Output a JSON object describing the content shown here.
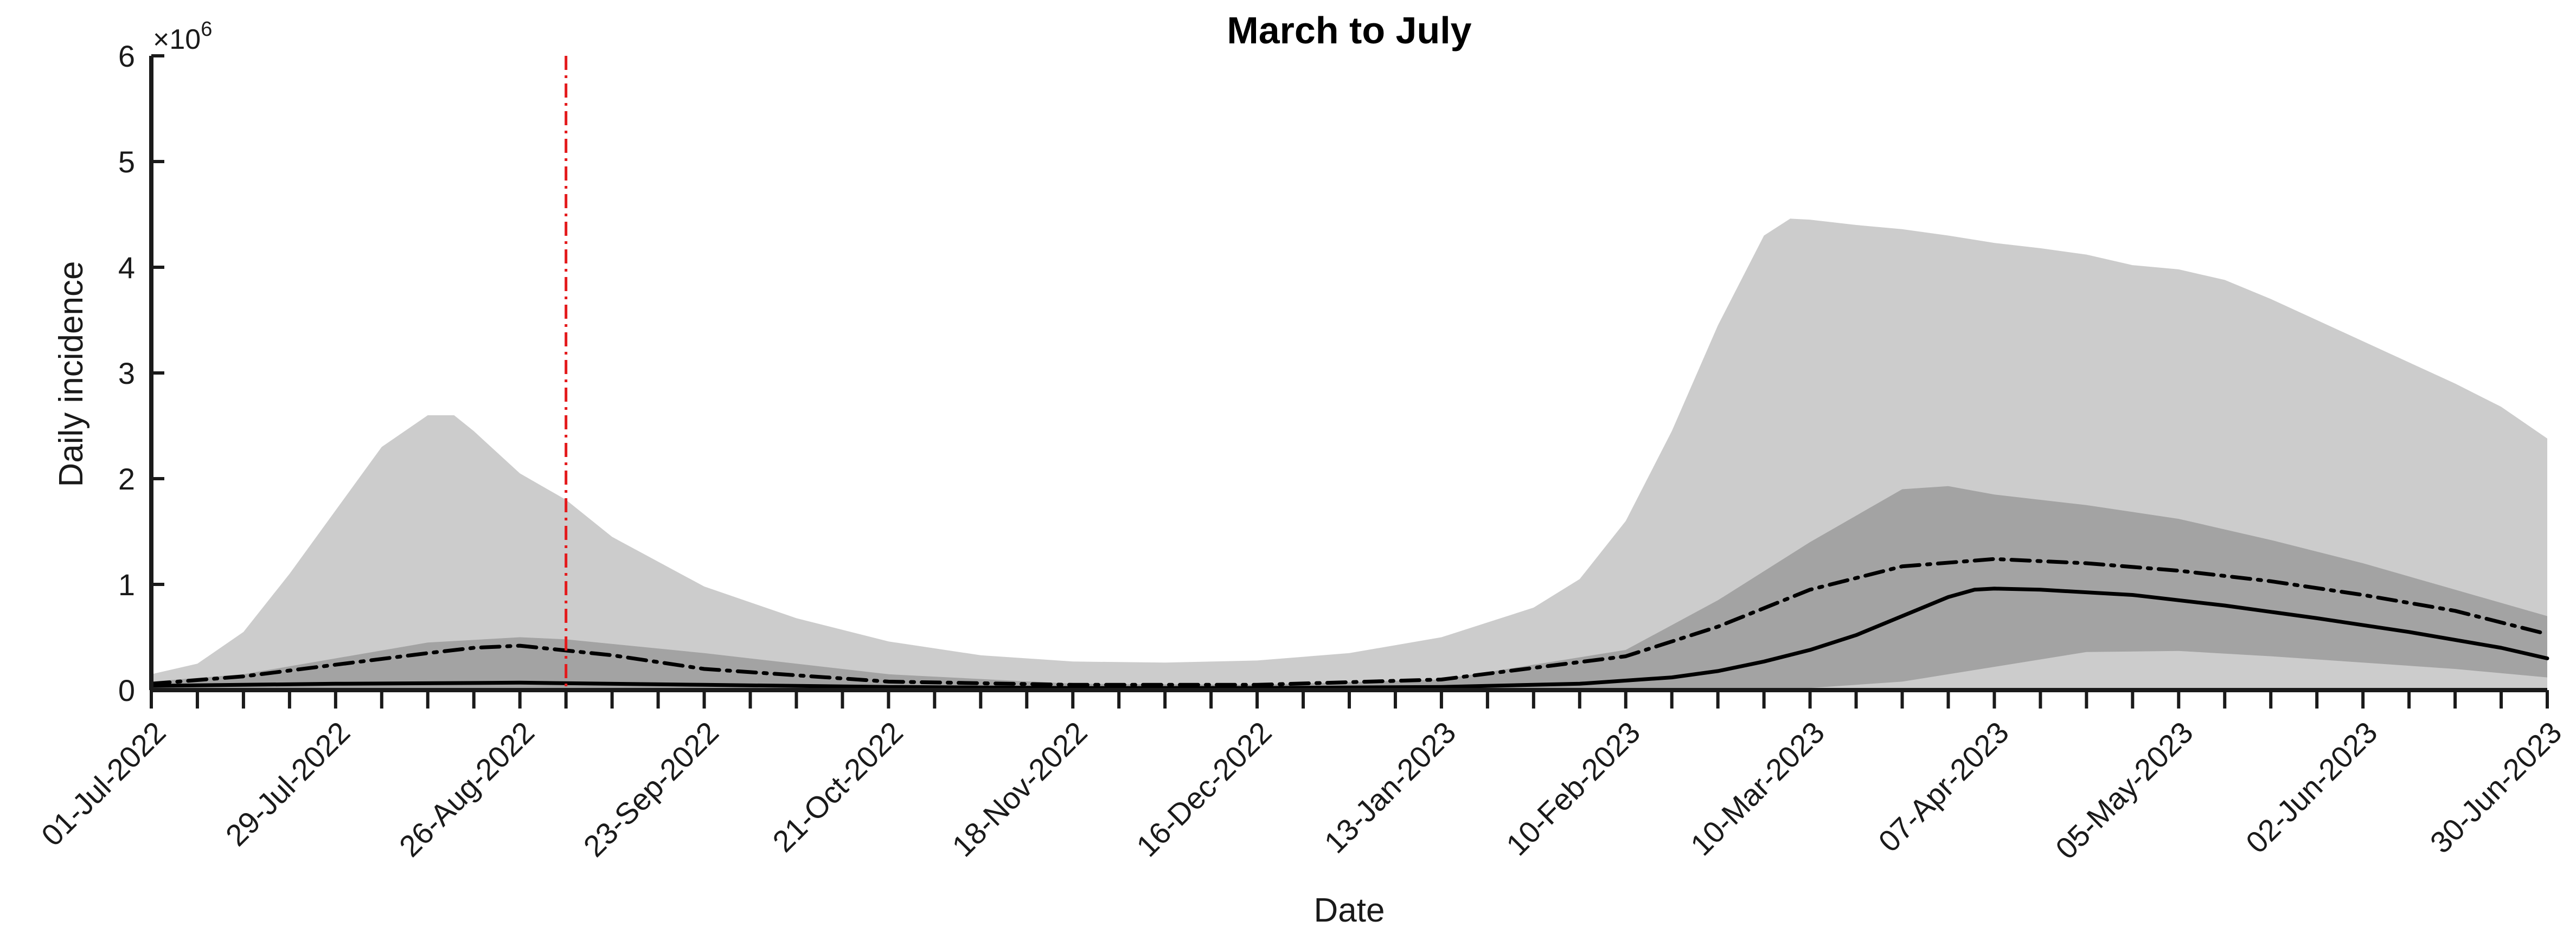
{
  "chart_data": {
    "type": "area",
    "title": "March to July",
    "xlabel": "Date",
    "ylabel": "Daily incidence",
    "y_multiplier_label": "×10",
    "y_multiplier_exponent": "6",
    "x_range": [
      "2022-07-01",
      "2023-06-30"
    ],
    "ylim": [
      0,
      6
    ],
    "y_ticks": [
      0,
      1,
      2,
      3,
      4,
      5,
      6
    ],
    "x_tick_labels": [
      "01-Jul-2022",
      "29-Jul-2022",
      "26-Aug-2022",
      "23-Sep-2022",
      "21-Oct-2022",
      "18-Nov-2022",
      "16-Dec-2022",
      "13-Jan-2023",
      "10-Feb-2023",
      "10-Mar-2023",
      "07-Apr-2023",
      "05-May-2023",
      "02-Jun-2023",
      "30-Jun-2023"
    ],
    "x_tick_dates": [
      "2022-07-01",
      "2022-07-29",
      "2022-08-26",
      "2022-09-23",
      "2022-10-21",
      "2022-11-18",
      "2022-12-16",
      "2023-01-13",
      "2023-02-10",
      "2023-03-10",
      "2023-04-07",
      "2023-05-05",
      "2023-06-02",
      "2023-06-30"
    ],
    "vertical_marker": {
      "date": "2022-09-02",
      "color": "#e41a1c",
      "style": "dash-dot"
    },
    "colors": {
      "outer_band": "#cccccc",
      "inner_band": "#a3a3a3",
      "lines": "#000000",
      "axis": "#1a1a1a"
    },
    "series": [
      {
        "style": "outer-band",
        "x": [
          "2022-07-01",
          "2022-07-08",
          "2022-07-15",
          "2022-07-22",
          "2022-07-29",
          "2022-08-05",
          "2022-08-12",
          "2022-08-16",
          "2022-08-19",
          "2022-08-26",
          "2022-09-02",
          "2022-09-09",
          "2022-09-23",
          "2022-10-07",
          "2022-10-21",
          "2022-11-04",
          "2022-11-18",
          "2022-12-02",
          "2022-12-16",
          "2022-12-30",
          "2023-01-13",
          "2023-01-27",
          "2023-02-03",
          "2023-02-10",
          "2023-02-17",
          "2023-02-24",
          "2023-03-03",
          "2023-03-07",
          "2023-03-10",
          "2023-03-17",
          "2023-03-24",
          "2023-03-31",
          "2023-04-07",
          "2023-04-14",
          "2023-04-21",
          "2023-04-28",
          "2023-05-05",
          "2023-05-12",
          "2023-05-19",
          "2023-05-26",
          "2023-06-02",
          "2023-06-09",
          "2023-06-16",
          "2023-06-23",
          "2023-06-30"
        ],
        "lower": [
          0,
          0,
          0,
          0,
          0,
          0,
          0,
          0,
          0,
          0,
          0,
          0,
          0,
          0,
          0,
          0,
          0,
          0,
          0,
          0,
          0,
          0,
          0,
          0,
          0,
          0,
          0,
          0,
          0,
          0,
          0,
          0,
          0,
          0,
          0,
          0,
          0,
          0,
          0,
          0,
          0,
          0,
          0,
          0,
          0
        ],
        "upper": [
          0.15,
          0.25,
          0.55,
          1.1,
          1.7,
          2.3,
          2.6,
          2.6,
          2.45,
          2.05,
          1.8,
          1.45,
          0.98,
          0.68,
          0.46,
          0.33,
          0.27,
          0.26,
          0.28,
          0.35,
          0.5,
          0.78,
          1.05,
          1.6,
          2.45,
          3.45,
          4.3,
          4.46,
          4.45,
          4.4,
          4.36,
          4.3,
          4.23,
          4.18,
          4.12,
          4.02,
          3.98,
          3.88,
          3.7,
          3.5,
          3.3,
          3.1,
          2.9,
          2.68,
          2.38
        ]
      },
      {
        "style": "inner-band",
        "x": [
          "2022-07-01",
          "2022-07-15",
          "2022-07-29",
          "2022-08-12",
          "2022-08-26",
          "2022-09-02",
          "2022-09-23",
          "2022-10-21",
          "2022-11-18",
          "2022-12-16",
          "2023-01-13",
          "2023-02-10",
          "2023-02-24",
          "2023-03-10",
          "2023-03-24",
          "2023-03-31",
          "2023-04-07",
          "2023-04-21",
          "2023-05-05",
          "2023-05-19",
          "2023-06-02",
          "2023-06-16",
          "2023-06-30"
        ],
        "lower": [
          0,
          0,
          0,
          0,
          0,
          0,
          0,
          0,
          0,
          0,
          0,
          0,
          0,
          0.02,
          0.08,
          0.15,
          0.22,
          0.36,
          0.37,
          0.32,
          0.26,
          0.2,
          0.12
        ],
        "upper": [
          0.08,
          0.15,
          0.3,
          0.45,
          0.5,
          0.48,
          0.35,
          0.15,
          0.06,
          0.05,
          0.1,
          0.38,
          0.85,
          1.4,
          1.9,
          1.93,
          1.85,
          1.75,
          1.62,
          1.42,
          1.2,
          0.95,
          0.7
        ]
      },
      {
        "style": "solid-line",
        "x": [
          "2022-07-01",
          "2022-07-29",
          "2022-08-26",
          "2022-09-23",
          "2022-10-21",
          "2022-11-18",
          "2022-12-16",
          "2023-01-13",
          "2023-02-03",
          "2023-02-17",
          "2023-02-24",
          "2023-03-03",
          "2023-03-10",
          "2023-03-17",
          "2023-03-24",
          "2023-03-31",
          "2023-04-04",
          "2023-04-07",
          "2023-04-14",
          "2023-04-28",
          "2023-05-12",
          "2023-05-26",
          "2023-06-09",
          "2023-06-23",
          "2023-06-30"
        ],
        "values": [
          0.04,
          0.06,
          0.07,
          0.05,
          0.03,
          0.02,
          0.02,
          0.03,
          0.06,
          0.12,
          0.18,
          0.27,
          0.38,
          0.52,
          0.7,
          0.88,
          0.95,
          0.96,
          0.95,
          0.9,
          0.8,
          0.68,
          0.55,
          0.4,
          0.3
        ]
      },
      {
        "style": "dash-dot-line",
        "x": [
          "2022-07-01",
          "2022-07-15",
          "2022-07-29",
          "2022-08-12",
          "2022-08-19",
          "2022-08-26",
          "2022-09-09",
          "2022-09-23",
          "2022-10-21",
          "2022-11-18",
          "2022-12-16",
          "2023-01-13",
          "2023-02-10",
          "2023-02-24",
          "2023-03-10",
          "2023-03-24",
          "2023-04-07",
          "2023-04-21",
          "2023-05-05",
          "2023-05-19",
          "2023-06-02",
          "2023-06-16",
          "2023-06-30"
        ],
        "values": [
          0.06,
          0.13,
          0.24,
          0.35,
          0.4,
          0.42,
          0.33,
          0.2,
          0.08,
          0.05,
          0.05,
          0.1,
          0.32,
          0.6,
          0.95,
          1.17,
          1.24,
          1.2,
          1.13,
          1.03,
          0.9,
          0.75,
          0.53
        ]
      }
    ]
  }
}
